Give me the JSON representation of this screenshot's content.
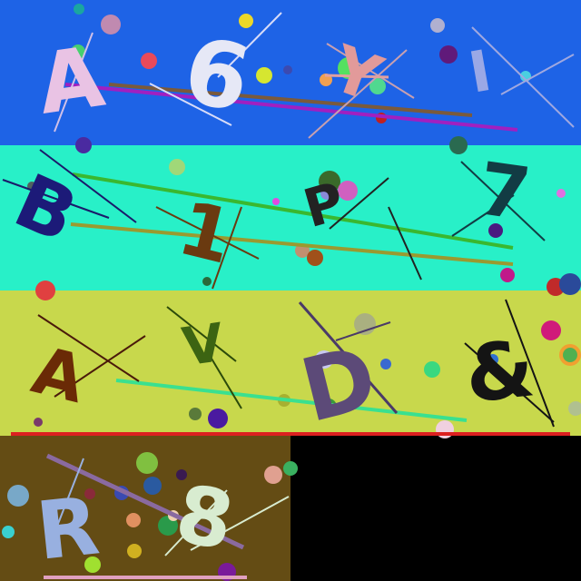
{
  "panels": [
    {
      "name": "row-1",
      "bg": "#1e63e6",
      "tiles": [
        {
          "char": "A",
          "color": "#e9c3e4"
        },
        {
          "char": "6",
          "color": "#e6e8f6"
        },
        {
          "char": "Y",
          "color": "#e29a9a"
        },
        {
          "char": "I",
          "color": "#9aa8e6"
        }
      ]
    },
    {
      "name": "row-2",
      "bg": "#28f0c8",
      "tiles": [
        {
          "char": "B",
          "color": "#1c1a78"
        },
        {
          "char": "1",
          "color": "#6a3a10"
        },
        {
          "char": "P",
          "color": "#222222"
        },
        {
          "char": "7",
          "color": "#123c44"
        }
      ]
    },
    {
      "name": "row-3",
      "bg": "#c8d84c",
      "tiles": [
        {
          "char": "A",
          "color": "#6a2a06"
        },
        {
          "char": "V",
          "color": "#3c6412"
        },
        {
          "char": "D",
          "color": "#5c4a78"
        },
        {
          "char": "&",
          "color": "#141414"
        }
      ]
    },
    {
      "name": "row-4",
      "bg": "#644c14",
      "tiles": [
        {
          "char": "R",
          "color": "#98b0e0"
        },
        {
          "char": "8",
          "color": "#d8ecd0"
        }
      ]
    }
  ],
  "colors": {
    "empty_area": "#000000",
    "red_divider": "#dc2020"
  }
}
